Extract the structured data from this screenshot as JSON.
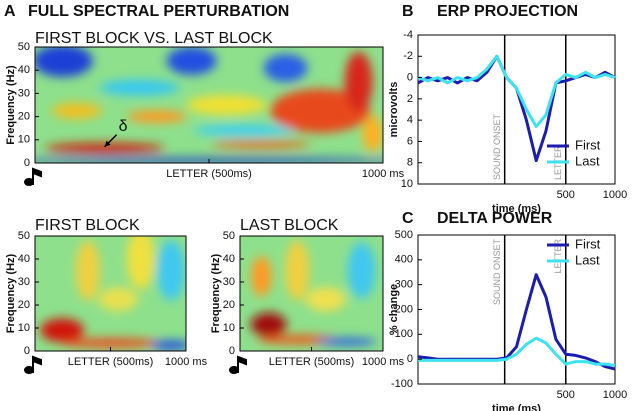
{
  "chart_data": [
    {
      "type": "heatmap",
      "panel": "A",
      "panel_title": "FULL SPECTRAL PERTURBATION",
      "title": "FIRST BLOCK VS. LAST BLOCK",
      "ylabel": "Frequency (Hz)",
      "ylim": [
        0,
        50
      ],
      "yticks": [
        0,
        10,
        20,
        30,
        40,
        50
      ],
      "xlim": [
        0,
        1000
      ],
      "xticks": [
        {
          "value": 500,
          "label": "LETTER (500ms)"
        },
        {
          "value": 1000,
          "label": "1000 ms"
        }
      ],
      "annotation": "δ"
    },
    {
      "type": "heatmap",
      "title": "FIRST BLOCK",
      "ylabel": "Frequency (Hz)",
      "ylim": [
        0,
        50
      ],
      "yticks": [
        0,
        10,
        20,
        30,
        40,
        50
      ],
      "xlim": [
        0,
        1000
      ],
      "xticks": [
        {
          "value": 500,
          "label": "LETTER (500ms)"
        },
        {
          "value": 1000,
          "label": "1000 ms"
        }
      ]
    },
    {
      "type": "heatmap",
      "title": "LAST BLOCK",
      "ylabel": "Frequency (Hz)",
      "ylim": [
        0,
        50
      ],
      "yticks": [
        0,
        10,
        20,
        30,
        40,
        50
      ],
      "xlim": [
        0,
        1000
      ],
      "xticks": [
        {
          "value": 500,
          "label": "LETTER (500ms)"
        },
        {
          "value": 1000,
          "label": "1000 ms"
        }
      ]
    },
    {
      "type": "line",
      "panel": "B",
      "title": "ERP PROJECTION",
      "ylabel": "microvolts",
      "xlabel": "time (ms)",
      "ylim": [
        -4,
        10
      ],
      "reverse_y": true,
      "yticks": [
        -4,
        -2,
        0,
        2,
        4,
        6,
        8,
        10
      ],
      "xlim": [
        -1000,
        1000
      ],
      "xticks": [
        500,
        1000
      ],
      "markers": [
        {
          "x": -120,
          "label": "SOUND ONSET"
        },
        {
          "x": 500,
          "label": "LETTER"
        }
      ],
      "legend": "lower right",
      "x": [
        -1000,
        -900,
        -800,
        -700,
        -600,
        -500,
        -400,
        -300,
        -200,
        -100,
        0,
        100,
        200,
        300,
        400,
        500,
        600,
        700,
        800,
        900,
        1000
      ],
      "series": [
        {
          "name": "First",
          "color": "#1c1cb0",
          "values": [
            0.5,
            0,
            0.3,
            0,
            0.5,
            0,
            0.3,
            -0.5,
            -2,
            0,
            1,
            4,
            7.8,
            5,
            0.5,
            0.3,
            0,
            -0.3,
            0,
            -0.5,
            0
          ]
        },
        {
          "name": "Last",
          "color": "#3ee3f0",
          "values": [
            0,
            0.3,
            0,
            0.5,
            0,
            0.3,
            0,
            -0.8,
            -2,
            0,
            1,
            3,
            4.6,
            3.5,
            0.5,
            -0.3,
            0,
            -0.5,
            0,
            -0.3,
            0
          ]
        }
      ]
    },
    {
      "type": "line",
      "panel": "C",
      "title": "DELTA POWER",
      "ylabel": "% change",
      "xlabel": "time (ms)",
      "ylim": [
        -100,
        500
      ],
      "yticks": [
        -100,
        0,
        100,
        200,
        300,
        400,
        500
      ],
      "xlim": [
        -1000,
        1000
      ],
      "xticks": [
        500,
        1000
      ],
      "markers": [
        {
          "x": -120,
          "label": "SOUND ONSET"
        },
        {
          "x": 500,
          "label": "LETTER"
        }
      ],
      "legend": "upper right",
      "x": [
        -1000,
        -900,
        -800,
        -700,
        -600,
        -500,
        -400,
        -300,
        -200,
        -100,
        0,
        100,
        200,
        300,
        400,
        500,
        600,
        700,
        800,
        900,
        1000
      ],
      "series": [
        {
          "name": "First",
          "color": "#1c1cb0",
          "values": [
            10,
            5,
            0,
            0,
            0,
            0,
            0,
            0,
            0,
            5,
            50,
            200,
            340,
            250,
            80,
            20,
            15,
            5,
            -10,
            -30,
            -40
          ]
        },
        {
          "name": "Last",
          "color": "#3ee3f0",
          "values": [
            -5,
            -5,
            -5,
            -5,
            -5,
            -5,
            -5,
            -5,
            -5,
            0,
            20,
            60,
            85,
            65,
            20,
            -20,
            -10,
            -10,
            -20,
            -20,
            -25
          ]
        }
      ]
    }
  ]
}
